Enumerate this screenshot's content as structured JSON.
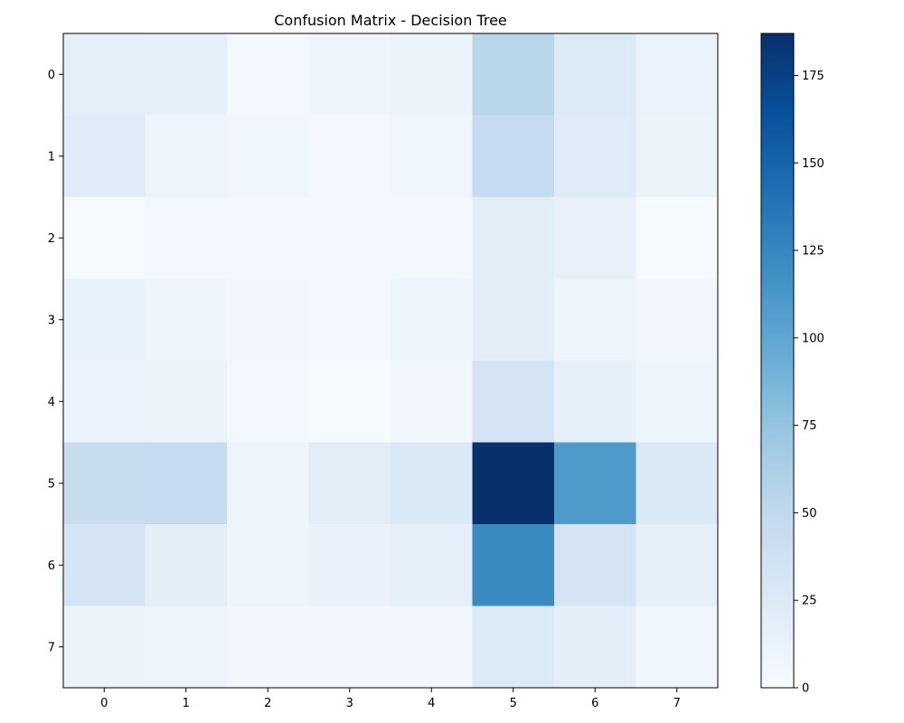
{
  "chart_data": {
    "type": "heatmap",
    "title": "Confusion Matrix - Decision Tree",
    "x_categories": [
      "0",
      "1",
      "2",
      "3",
      "4",
      "5",
      "6",
      "7"
    ],
    "y_categories": [
      "0",
      "1",
      "2",
      "3",
      "4",
      "5",
      "6",
      "7"
    ],
    "matrix": [
      [
        18,
        16,
        4,
        8,
        11,
        55,
        25,
        12
      ],
      [
        22,
        10,
        7,
        4,
        7,
        47,
        22,
        11
      ],
      [
        2,
        5,
        5,
        5,
        4,
        20,
        14,
        2
      ],
      [
        15,
        8,
        6,
        4,
        9,
        20,
        10,
        6
      ],
      [
        12,
        11,
        4,
        2,
        6,
        33,
        16,
        9
      ],
      [
        45,
        47,
        9,
        20,
        27,
        187,
        110,
        26
      ],
      [
        33,
        19,
        10,
        13,
        18,
        122,
        33,
        17
      ],
      [
        11,
        10,
        6,
        6,
        6,
        25,
        19,
        7
      ]
    ],
    "colormap": "Blues",
    "colorbar": {
      "min": 0,
      "max": 187,
      "ticks": [
        0,
        25,
        50,
        75,
        100,
        125,
        150,
        175
      ]
    }
  }
}
